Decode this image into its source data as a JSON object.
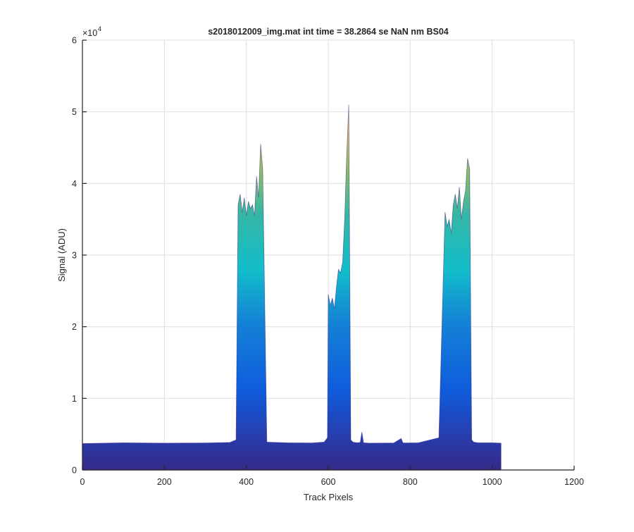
{
  "chart_data": {
    "type": "area",
    "title": "s2018012009_img.mat int time = 38.2864 se  NaN nm BS04",
    "xlabel": "Track Pixels",
    "ylabel": "Signal (ADU)",
    "xlim": [
      0,
      1200
    ],
    "ylim": [
      0,
      60000
    ],
    "x_ticks": [
      "0",
      "200",
      "400",
      "600",
      "800",
      "1000",
      "1200"
    ],
    "y_ticks": [
      "0",
      "1",
      "2",
      "3",
      "4",
      "5",
      "6"
    ],
    "y_exponent_base": "×10",
    "y_exponent_power": "4",
    "grid": true,
    "colormap": "parula",
    "colors": {
      "low": "#352a87",
      "mid_blue": "#0f5cdd",
      "cyan": "#12bec9",
      "green": "#8cbf5e",
      "high": "#f9d428",
      "grid": "#e3e3e3",
      "axis": "#262626"
    },
    "baseline": 3800,
    "series": [
      {
        "x": [
          0,
          100,
          200,
          300,
          360,
          375,
          380,
          385,
          390,
          395,
          400,
          405,
          410,
          415,
          420,
          425,
          430,
          435,
          440,
          450,
          500,
          560,
          590,
          598,
          600,
          605,
          610,
          615,
          620,
          625,
          630,
          635,
          640,
          645,
          650,
          655,
          660,
          670,
          678,
          682,
          686,
          700,
          760,
          778,
          782,
          786,
          820,
          870,
          885,
          890,
          895,
          900,
          905,
          910,
          915,
          920,
          925,
          930,
          935,
          940,
          945,
          950,
          955,
          965,
          1000,
          1022
        ],
        "y": [
          3700,
          3800,
          3750,
          3780,
          3850,
          4200,
          37000,
          38500,
          36000,
          38000,
          35500,
          37500,
          36500,
          37000,
          35500,
          41000,
          38000,
          45500,
          42000,
          3900,
          3800,
          3780,
          3900,
          4500,
          24500,
          23000,
          24000,
          22500,
          25500,
          28000,
          27500,
          29000,
          35000,
          44000,
          51000,
          4200,
          3900,
          3800,
          3850,
          5300,
          3800,
          3750,
          3780,
          4400,
          3800,
          3780,
          3800,
          4500,
          36000,
          34000,
          35000,
          33000,
          37000,
          38500,
          36500,
          39500,
          35000,
          37500,
          39000,
          43500,
          42000,
          4200,
          3900,
          3800,
          3800,
          3750
        ]
      }
    ]
  }
}
